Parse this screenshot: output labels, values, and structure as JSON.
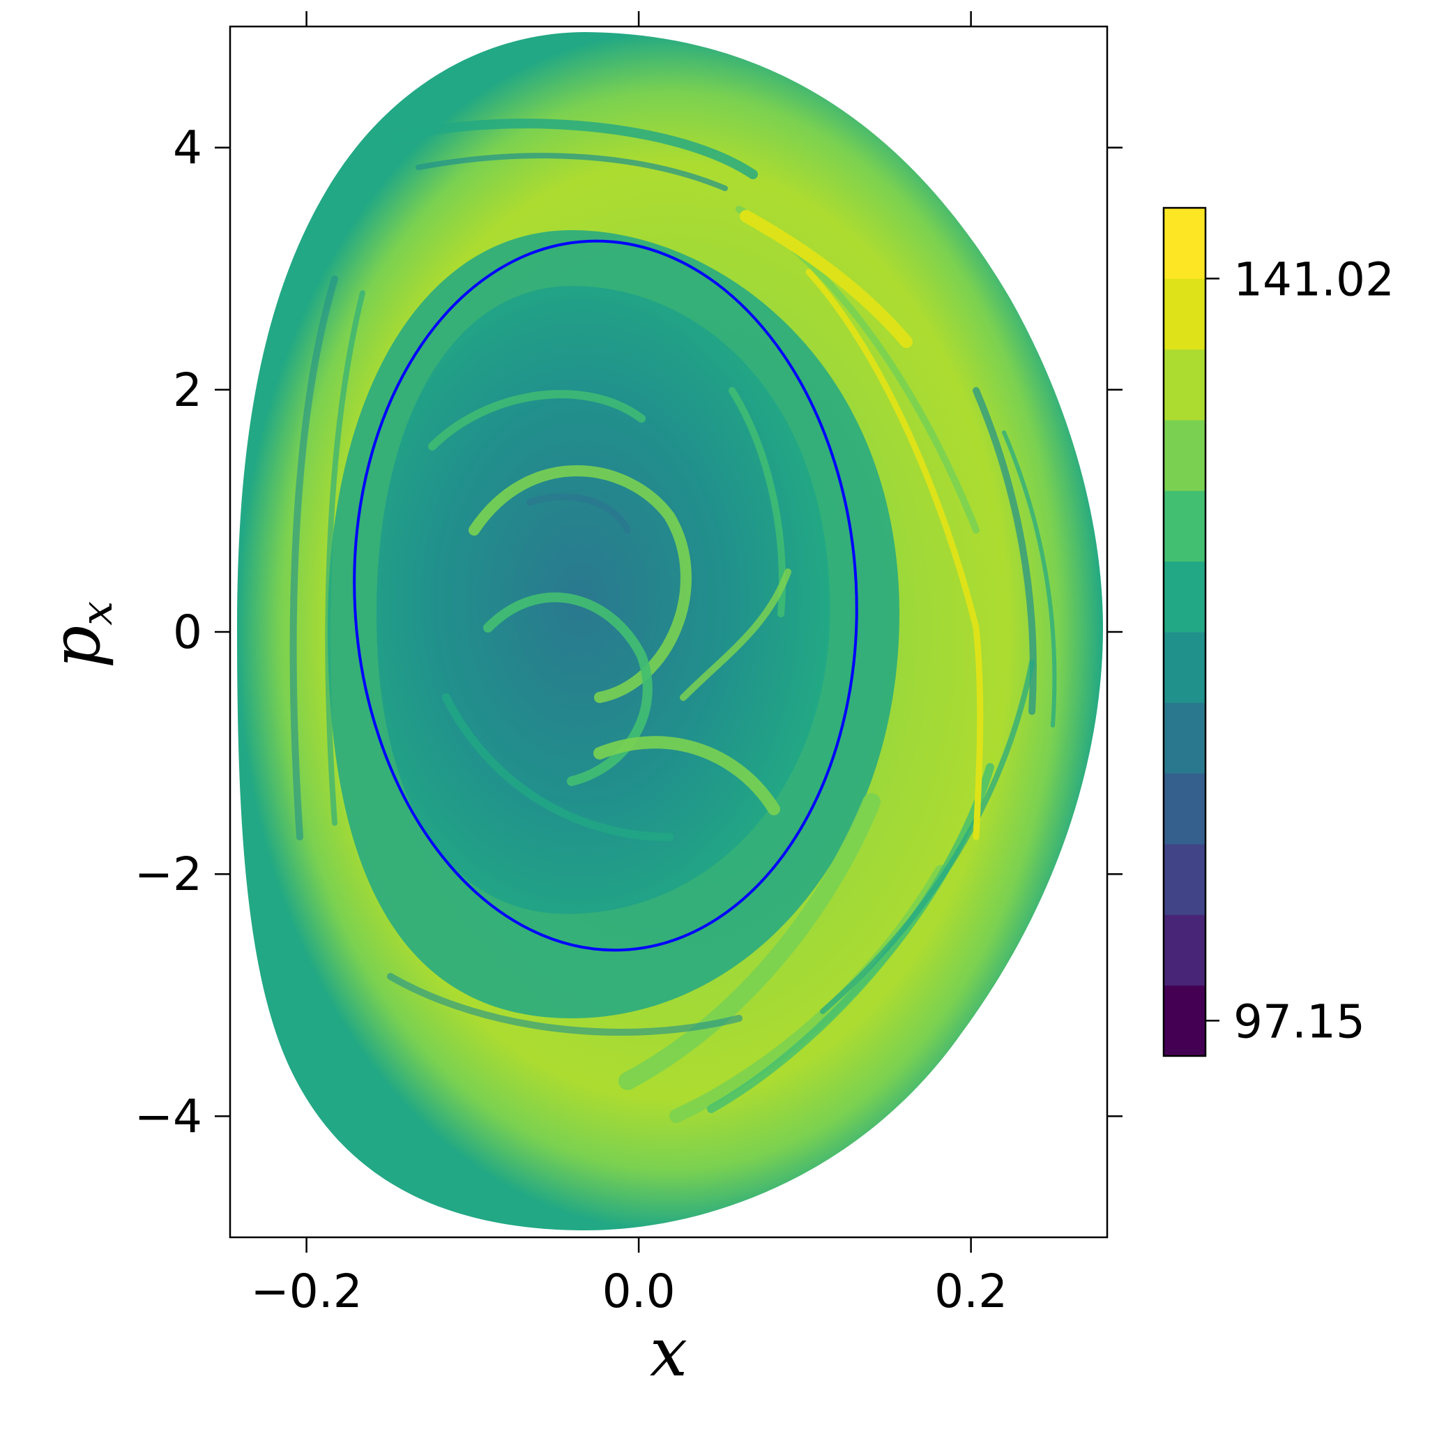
{
  "chart_data": {
    "type": "heatmap",
    "xlabel": "x",
    "ylabel": "p",
    "ylabel_subscript": "x",
    "xlim": [
      -0.246,
      0.282
    ],
    "ylim": [
      -5.0,
      5.0
    ],
    "xticks": [
      {
        "value": -0.2,
        "label": "−0.2"
      },
      {
        "value": 0.0,
        "label": "0.0"
      },
      {
        "value": 0.2,
        "label": "0.2"
      }
    ],
    "yticks": [
      {
        "value": -4,
        "label": "−4"
      },
      {
        "value": -2,
        "label": "−2"
      },
      {
        "value": 0,
        "label": "0"
      },
      {
        "value": 2,
        "label": "2"
      },
      {
        "value": 4,
        "label": "4"
      }
    ],
    "colorbar": {
      "min": 97.15,
      "max": 141.02,
      "ticks": [
        {
          "value": 141.02,
          "label": "141.02"
        },
        {
          "value": 97.15,
          "label": "97.15"
        }
      ],
      "levels": [
        "#440154",
        "#482576",
        "#414487",
        "#35608d",
        "#2a788e",
        "#21918c",
        "#22a884",
        "#43bf71",
        "#7ad151",
        "#addc30",
        "#dde318",
        "#fde725"
      ]
    },
    "outer_region": {
      "x_extent": [
        -0.242,
        0.28
      ],
      "p_extent": [
        -4.98,
        4.95
      ],
      "dominant_level_color": "#addc30"
    },
    "highlighted_orbit": {
      "color": "#0000ff",
      "x_center": -0.02,
      "p_center": 0.3,
      "x_radius": 0.151,
      "p_radius": 2.93,
      "x_range": [
        -0.17,
        0.132
      ],
      "p_range": [
        -2.63,
        3.23
      ]
    },
    "grid": false,
    "legend": "colorbar-right"
  }
}
